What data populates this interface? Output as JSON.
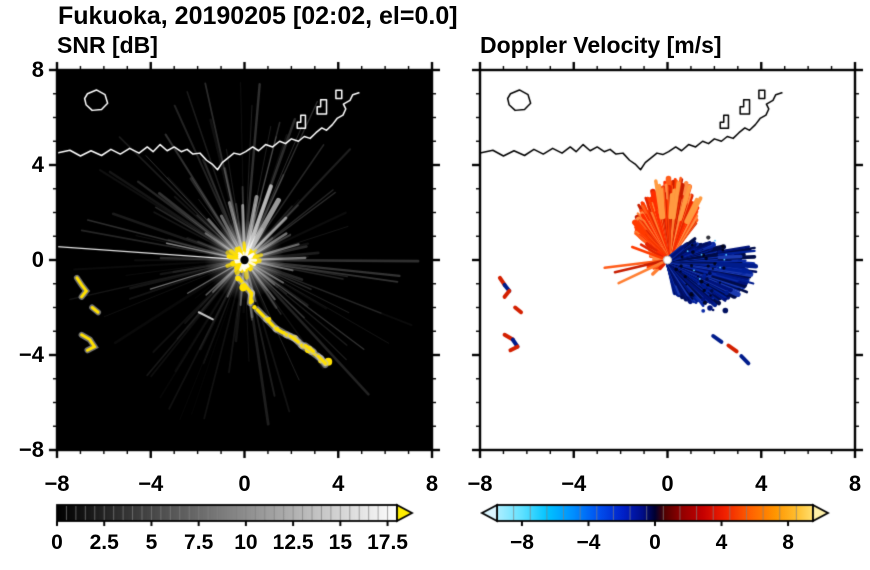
{
  "figure": {
    "title": "Fukuoka, 20190205 [02:02, el=0.0]"
  },
  "panels": [
    {
      "id": "snr",
      "title": "SNR [dB]",
      "axis": {
        "range": [
          -8,
          8
        ],
        "major_ticks": [
          -8,
          -4,
          0,
          4,
          8
        ],
        "minor_tick_step": 1,
        "x_tick_labels": [
          "−8",
          "−4",
          "0",
          "4",
          "8"
        ],
        "y_tick_labels": [
          "−8",
          "−4",
          "0",
          "4",
          "8"
        ]
      },
      "colorbar": {
        "range": [
          0,
          18
        ],
        "minor_step": 0.5,
        "tick_values": [
          0,
          2.5,
          5,
          7.5,
          10,
          12.5,
          15,
          17.5
        ],
        "tick_labels": [
          "0",
          "2.5",
          "5",
          "7.5",
          "10",
          "12.5",
          "15",
          "17.5"
        ],
        "gradient": [
          [
            0,
            "#000000"
          ],
          [
            1,
            "#ffffff"
          ]
        ],
        "over_arrow_color": "#ffee00"
      },
      "colors": {
        "background": "#000000",
        "coast": "#ffffff",
        "echo_strong": "#ffe000"
      }
    },
    {
      "id": "velocity",
      "title": "Doppler Velocity [m/s]",
      "axis": {
        "range": [
          -8,
          8
        ],
        "major_ticks": [
          -8,
          -4,
          0,
          4,
          8
        ],
        "minor_tick_step": 1,
        "x_tick_labels": [
          "−8",
          "−4",
          "0",
          "4",
          "8"
        ],
        "y_tick_labels": []
      },
      "colorbar": {
        "range": [
          -9.5,
          9.5
        ],
        "minor_step": 1,
        "tick_values": [
          -8,
          -4,
          0,
          4,
          8
        ],
        "tick_labels": [
          "−8",
          "−4",
          "0",
          "4",
          "8"
        ],
        "gradient": [
          [
            0,
            "#aeefff"
          ],
          [
            0.08,
            "#5fe1ff"
          ],
          [
            0.16,
            "#00c3ff"
          ],
          [
            0.24,
            "#0090ff"
          ],
          [
            0.32,
            "#0050f0"
          ],
          [
            0.4,
            "#0020c8"
          ],
          [
            0.46,
            "#000e8a"
          ],
          [
            0.5,
            "#000030"
          ],
          [
            0.53,
            "#500000"
          ],
          [
            0.58,
            "#8f0000"
          ],
          [
            0.65,
            "#c40000"
          ],
          [
            0.72,
            "#f02000"
          ],
          [
            0.8,
            "#ff6000"
          ],
          [
            0.88,
            "#ff9500"
          ],
          [
            0.95,
            "#ffc030"
          ],
          [
            1,
            "#ffe070"
          ]
        ],
        "under_arrow_color": "#dcf6ff",
        "over_arrow_color": "#fff0a8"
      },
      "colors": {
        "background": "#ffffff",
        "coast": "#000000",
        "toward": "#001c8c",
        "away": "#e32400"
      }
    }
  ],
  "chart_data": {
    "type": "heatmap",
    "title": "Fukuoka, 20190205 [02:02, el=0.0]",
    "site": "Fukuoka",
    "date_label": "20190205",
    "time_label": "02:02",
    "elevation_label": "el=0.0",
    "subplots": [
      {
        "title": "SNR [dB]",
        "xlim": [
          -8,
          8
        ],
        "ylim": [
          -8,
          8
        ],
        "colormap": "grayscale 0-18 dB, above-range yellow"
      },
      {
        "title": "Doppler Velocity [m/s]",
        "xlim": [
          -8,
          8
        ],
        "ylim": [
          -8,
          8
        ],
        "colormap": "cyan-blue-navy negative / red-orange-yellow positive"
      }
    ],
    "radar_origin": [
      0,
      0
    ],
    "features": {
      "coastline": [
        [
          -8,
          4.5
        ],
        [
          -7.45,
          4.62
        ],
        [
          -7,
          4.38
        ],
        [
          -6.55,
          4.6
        ],
        [
          -6.1,
          4.4
        ],
        [
          -5.7,
          4.66
        ],
        [
          -5.3,
          4.46
        ],
        [
          -4.9,
          4.7
        ],
        [
          -4.5,
          4.5
        ],
        [
          -4.15,
          4.76
        ],
        [
          -3.9,
          4.56
        ],
        [
          -3.6,
          4.86
        ],
        [
          -3.3,
          4.6
        ],
        [
          -3,
          4.76
        ],
        [
          -2.7,
          4.56
        ],
        [
          -2.45,
          4.66
        ],
        [
          -2.2,
          4.46
        ],
        [
          -1.9,
          4.5
        ],
        [
          -1.62,
          4.2
        ],
        [
          -1.38,
          4.04
        ],
        [
          -1.15,
          3.8
        ],
        [
          -0.95,
          4.1
        ],
        [
          -0.7,
          4.3
        ],
        [
          -0.45,
          4.5
        ],
        [
          -0.2,
          4.44
        ],
        [
          0.05,
          4.56
        ],
        [
          0.35,
          4.76
        ],
        [
          0.6,
          4.6
        ],
        [
          0.9,
          4.86
        ],
        [
          1.2,
          4.76
        ],
        [
          1.5,
          5.0
        ],
        [
          1.75,
          4.9
        ],
        [
          2.0,
          5.1
        ],
        [
          2.3,
          5.0
        ],
        [
          2.55,
          5.2
        ],
        [
          2.8,
          5.12
        ],
        [
          3.05,
          5.36
        ],
        [
          3.3,
          5.56
        ],
        [
          3.5,
          5.46
        ],
        [
          3.75,
          5.7
        ],
        [
          3.95,
          5.96
        ],
        [
          4.2,
          6.1
        ],
        [
          4.32,
          6.36
        ],
        [
          4.22,
          6.56
        ],
        [
          4.5,
          6.72
        ],
        [
          4.62,
          6.96
        ],
        [
          4.88,
          7.04
        ]
      ],
      "island": [
        [
          -6.7,
          7.0
        ],
        [
          -6.32,
          7.16
        ],
        [
          -5.95,
          6.96
        ],
        [
          -5.84,
          6.6
        ],
        [
          -6.1,
          6.34
        ],
        [
          -6.5,
          6.3
        ],
        [
          -6.76,
          6.54
        ],
        [
          -6.82,
          6.8
        ]
      ],
      "structures": [
        [
          [
            2.25,
            5.55
          ],
          [
            2.6,
            5.55
          ],
          [
            2.6,
            6.1
          ],
          [
            2.4,
            6.1
          ],
          [
            2.4,
            5.8
          ],
          [
            2.25,
            5.8
          ]
        ],
        [
          [
            3.1,
            6.15
          ],
          [
            3.5,
            6.15
          ],
          [
            3.5,
            6.75
          ],
          [
            3.25,
            6.75
          ],
          [
            3.25,
            6.45
          ],
          [
            3.1,
            6.45
          ]
        ],
        [
          [
            3.9,
            6.8
          ],
          [
            4.15,
            6.8
          ],
          [
            4.15,
            7.15
          ],
          [
            3.9,
            7.15
          ]
        ]
      ],
      "noise_beams": {
        "count": 130,
        "seed": 20190205,
        "min_len": 1.5,
        "max_len": 7.8
      },
      "bright_beams": [
        {
          "deg": 176,
          "len": 8.3,
          "w": 1.3,
          "a": 0.9
        },
        {
          "deg": 168,
          "len": 3.4,
          "w": 1.4,
          "a": 0.5
        },
        {
          "deg": 197,
          "len": 4.2,
          "w": 1.2,
          "a": 0.45
        },
        {
          "deg": 210,
          "len": 2.8,
          "w": 1.4,
          "a": 0.4
        },
        {
          "deg": 222,
          "len": 2.2,
          "w": 1.6,
          "a": 0.35
        },
        {
          "deg": 60,
          "len": 2.9,
          "w": 5,
          "a": 0.6
        },
        {
          "deg": 70,
          "len": 3.3,
          "w": 4,
          "a": 0.65
        },
        {
          "deg": 79,
          "len": 2.7,
          "w": 4,
          "a": 0.55
        },
        {
          "deg": 92,
          "len": 2.3,
          "w": 3,
          "a": 0.5
        },
        {
          "deg": 105,
          "len": 2.5,
          "w": 3,
          "a": 0.45
        },
        {
          "deg": 118,
          "len": 2.1,
          "w": 3,
          "a": 0.42
        },
        {
          "deg": 132,
          "len": 2.3,
          "w": 2.5,
          "a": 0.4
        },
        {
          "deg": 146,
          "len": 2.0,
          "w": 2.2,
          "a": 0.38
        },
        {
          "deg": 45,
          "len": 2.5,
          "w": 3,
          "a": 0.5
        },
        {
          "deg": 32,
          "len": 2.1,
          "w": 2.6,
          "a": 0.45
        },
        {
          "deg": 16,
          "len": 2.4,
          "w": 2.2,
          "a": 0.42
        },
        {
          "deg": 2,
          "len": 2.6,
          "w": 2.2,
          "a": 0.45
        },
        {
          "deg": -12,
          "len": 2.1,
          "w": 2,
          "a": 0.4
        },
        {
          "deg": -30,
          "len": 1.9,
          "w": 2,
          "a": 0.35
        },
        {
          "deg": -52,
          "len": 2.1,
          "w": 2,
          "a": 0.35
        },
        {
          "deg": -75,
          "len": 1.8,
          "w": 2,
          "a": 0.32
        },
        {
          "deg": -95,
          "len": 1.9,
          "w": 2,
          "a": 0.3
        },
        {
          "deg": -115,
          "len": 1.7,
          "w": 2,
          "a": 0.3
        },
        {
          "deg": -135,
          "len": 1.9,
          "w": 2,
          "a": 0.3
        }
      ],
      "snr_arc": [
        [
          -0.25,
          -0.75
        ],
        [
          0.0,
          -1.05
        ],
        [
          0.3,
          -1.4
        ],
        [
          0.25,
          -1.8
        ],
        [
          0.55,
          -2.1
        ],
        [
          0.95,
          -2.5
        ],
        [
          1.35,
          -2.9
        ],
        [
          1.8,
          -3.15
        ],
        [
          2.15,
          -3.3
        ],
        [
          2.45,
          -3.6
        ],
        [
          2.85,
          -3.85
        ],
        [
          3.25,
          -4.15
        ],
        [
          3.45,
          -4.4
        ]
      ],
      "white_dash": [
        [
          -1.95,
          -2.2
        ],
        [
          -1.35,
          -2.5
        ]
      ],
      "echo_patches": [
        {
          "pts": [
            [
              -7.15,
              -0.75
            ],
            [
              -6.95,
              -1.05
            ],
            [
              -6.75,
              -1.3
            ],
            [
              -6.95,
              -1.55
            ]
          ],
          "vel_colors": [
            "#d42000",
            "#001c8c"
          ]
        },
        {
          "pts": [
            [
              -6.5,
              -2.0
            ],
            [
              -6.25,
              -2.2
            ]
          ],
          "vel_colors": [
            "#d42000"
          ]
        },
        {
          "pts": [
            [
              -6.95,
              -3.15
            ],
            [
              -6.6,
              -3.35
            ],
            [
              -6.4,
              -3.65
            ],
            [
              -6.7,
              -3.8
            ]
          ],
          "vel_colors": [
            "#d42000",
            "#001c8c"
          ]
        },
        {
          "pts": [
            [
              1.95,
              -3.2
            ],
            [
              2.3,
              -3.45
            ]
          ],
          "vel_colors": [
            "#001c8c",
            "#d42000"
          ]
        },
        {
          "pts": [
            [
              2.6,
              -3.6
            ],
            [
              2.95,
              -3.85
            ]
          ],
          "vel_colors": [
            "#d42000",
            "#001c8c"
          ]
        },
        {
          "pts": [
            [
              3.15,
              -4.05
            ],
            [
              3.45,
              -4.35
            ]
          ],
          "vel_colors": [
            "#001c8c"
          ]
        }
      ],
      "red_fan": {
        "angle_deg": [
          52,
          142
        ],
        "max_radius": 3.3
      },
      "blue_fan": {
        "angle_deg": [
          -78,
          40
        ],
        "max_radius": 3.8
      },
      "red_streaks_deg": [
        150,
        160,
        187,
        193,
        205
      ]
    }
  }
}
